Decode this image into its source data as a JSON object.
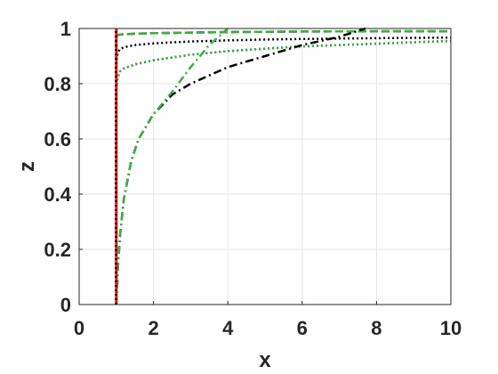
{
  "chart_data": {
    "type": "line",
    "title": "",
    "xlabel": "x",
    "ylabel": "z",
    "xlim": [
      0,
      10
    ],
    "ylim": [
      0,
      1
    ],
    "grid": true,
    "legend": "none",
    "xticks": [
      "0",
      "2",
      "4",
      "6",
      "8",
      "10"
    ],
    "yticks": [
      "0",
      "0.2",
      "0.4",
      "0.6",
      "0.8",
      "1"
    ],
    "series": [
      {
        "color": "#000000",
        "style": "dashed",
        "x": [
          1.0,
          1.02,
          1.05,
          1.1,
          1.2,
          1.5,
          2,
          3,
          4,
          5,
          6,
          8,
          10
        ],
        "y": [
          0.97,
          0.974,
          0.976,
          0.978,
          0.979,
          0.981,
          0.983,
          0.985,
          0.987,
          0.988,
          0.989,
          0.99,
          0.99
        ]
      },
      {
        "color": "#3cb043",
        "style": "dashed",
        "x": [
          1.0,
          1.02,
          1.05,
          1.1,
          1.2,
          1.5,
          2,
          3,
          4,
          5,
          6,
          8,
          10
        ],
        "y": [
          0.97,
          0.974,
          0.976,
          0.978,
          0.979,
          0.981,
          0.983,
          0.985,
          0.987,
          0.988,
          0.989,
          0.99,
          0.99
        ]
      },
      {
        "color": "#000000",
        "style": "dotted",
        "x": [
          1.0,
          1.02,
          1.05,
          1.1,
          1.2,
          1.5,
          2,
          3,
          4,
          5,
          6,
          8,
          10
        ],
        "y": [
          0.87,
          0.9,
          0.915,
          0.925,
          0.932,
          0.94,
          0.946,
          0.953,
          0.957,
          0.96,
          0.962,
          0.965,
          0.967
        ]
      },
      {
        "color": "#000000",
        "style": "dotted",
        "x": [
          1.0,
          1.03,
          1.1,
          1.2,
          1.5,
          2,
          3,
          4,
          5,
          6,
          8,
          10
        ],
        "y": [
          0.78,
          0.82,
          0.845,
          0.855,
          0.87,
          0.885,
          0.905,
          0.918,
          0.927,
          0.935,
          0.945,
          0.955
        ]
      },
      {
        "color": "#3cb043",
        "style": "dotted",
        "x": [
          1.0,
          1.03,
          1.1,
          1.2,
          1.5,
          2,
          3,
          4,
          5,
          6,
          8,
          10
        ],
        "y": [
          0.78,
          0.82,
          0.845,
          0.855,
          0.87,
          0.885,
          0.905,
          0.918,
          0.927,
          0.935,
          0.945,
          0.955
        ]
      },
      {
        "color": "#000000",
        "style": "dashdot",
        "x": [
          1.0,
          1.05,
          1.1,
          1.2,
          1.4,
          1.6,
          2,
          2.5,
          3,
          4,
          5,
          6,
          7,
          7.7
        ],
        "y": [
          0.0,
          0.15,
          0.25,
          0.38,
          0.52,
          0.6,
          0.69,
          0.76,
          0.8,
          0.86,
          0.9,
          0.94,
          0.97,
          1.0
        ]
      },
      {
        "color": "#3cb043",
        "style": "dashdot",
        "x": [
          1.0,
          1.05,
          1.1,
          1.2,
          1.4,
          1.6,
          2,
          2.5,
          3,
          3.5,
          4.0
        ],
        "y": [
          0.0,
          0.15,
          0.25,
          0.38,
          0.52,
          0.6,
          0.69,
          0.77,
          0.86,
          0.94,
          1.0
        ]
      },
      {
        "color": "#ee1111",
        "style": "solid",
        "x": [
          1.0,
          1.0
        ],
        "y": [
          0.0,
          1.0
        ]
      },
      {
        "color": "#000000",
        "style": "dotted",
        "x": [
          0.99,
          0.99
        ],
        "y": [
          0.0,
          1.0
        ]
      }
    ]
  }
}
